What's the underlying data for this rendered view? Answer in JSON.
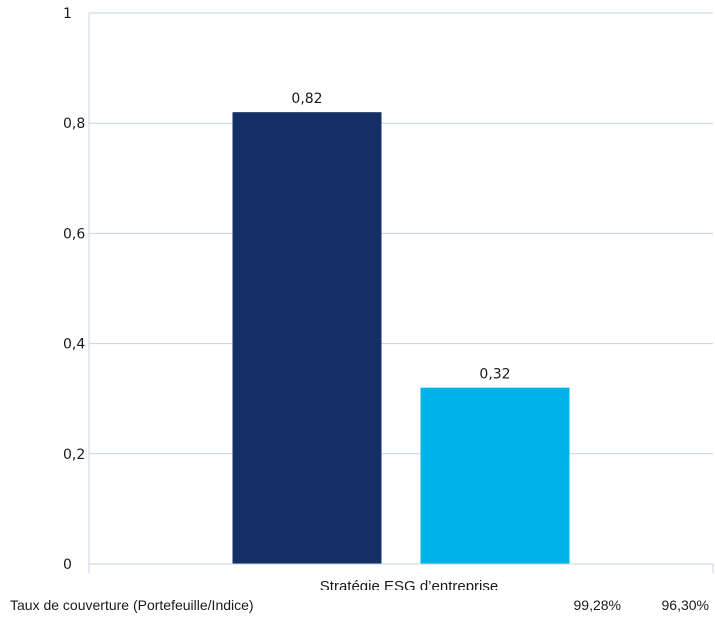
{
  "chart_data": {
    "type": "bar",
    "categories": [
      "Stratégie ESG d’entreprise"
    ],
    "series": [
      {
        "values": [
          0.82
        ],
        "color": "#132f66",
        "label": "0,82"
      },
      {
        "values": [
          0.32
        ],
        "color": "#00b3e8",
        "label": "0,32"
      }
    ],
    "ylim": [
      0,
      1
    ],
    "yticks": [
      {
        "value": 0,
        "label": "0"
      },
      {
        "value": 0.2,
        "label": "0,2"
      },
      {
        "value": 0.4,
        "label": "0,4"
      },
      {
        "value": 0.6,
        "label": "0,6"
      },
      {
        "value": 0.8,
        "label": "0,8"
      },
      {
        "value": 1,
        "label": "1"
      }
    ],
    "grid": true,
    "gridColor": "#c7d3e0"
  },
  "footer": {
    "label": "Taux de couverture (Portefeuille/Indice)",
    "portfolio": "99,28%",
    "index": "96,30%"
  }
}
